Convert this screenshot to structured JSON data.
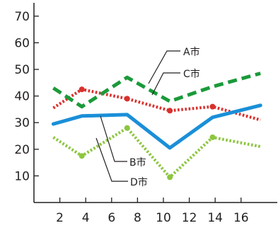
{
  "chart_data": {
    "type": "line",
    "xlabel": "",
    "ylabel": "",
    "xlim": [
      0,
      18.8
    ],
    "ylim": [
      0,
      75
    ],
    "x_ticks": [
      2,
      4,
      6,
      8,
      10,
      12,
      14,
      16
    ],
    "y_ticks": [
      10,
      20,
      30,
      40,
      50,
      60,
      70
    ],
    "grid": false,
    "legend": "callouts",
    "series": [
      {
        "name": "A市",
        "color": "#1a9a3a",
        "style": "dashed",
        "x": [
          1.5,
          3.7,
          7.2,
          10.5,
          13.8,
          17.5
        ],
        "y": [
          43,
          36,
          47,
          38,
          43.5,
          48.5
        ]
      },
      {
        "name": "C市",
        "color": "#d9302c",
        "style": "dotted",
        "x": [
          1.5,
          3.7,
          7.2,
          10.5,
          13.8,
          17.5
        ],
        "y": [
          35.5,
          42.5,
          39,
          34.5,
          36,
          31
        ]
      },
      {
        "name": "B市",
        "color": "#1a8fd8",
        "style": "solid",
        "x": [
          1.5,
          3.7,
          7.2,
          10.5,
          13.8,
          17.5
        ],
        "y": [
          29.5,
          32.5,
          33,
          20.5,
          32,
          36.5
        ]
      },
      {
        "name": "D市",
        "color": "#8cc63f",
        "style": "dotted",
        "x": [
          1.5,
          3.7,
          7.2,
          10.5,
          13.8,
          17.5
        ],
        "y": [
          24.5,
          17.5,
          28,
          9.5,
          24.5,
          21
        ]
      }
    ]
  }
}
